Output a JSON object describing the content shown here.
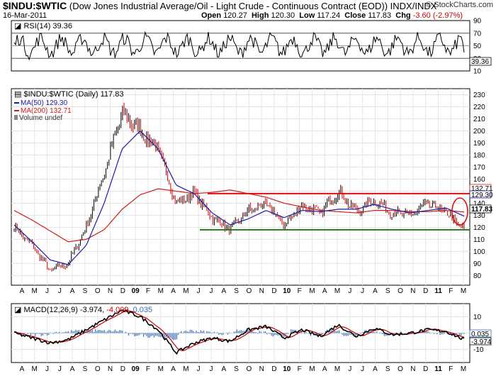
{
  "header": {
    "symbol": "$INDU:$WTIC",
    "description": "(Dow Jones Industrial Average/Oil - Light Crude - Continuous Contract (EOD))",
    "exchange": "INDX/INDX",
    "date": "16-Mar-2011",
    "brand": "© StockCharts.com",
    "open_label": "Open",
    "open": "120.27",
    "high_label": "High",
    "high": "120.30",
    "low_label": "Low",
    "low": "117.24",
    "close_label": "Close",
    "close": "117.83",
    "chg_label": "Chg",
    "chg": "-3.60 (-2.97%)"
  },
  "rsi_panel": {
    "label": "RSI(14) 39.36",
    "current": 39.36,
    "current_label": "39.36",
    "ticks": [
      "90",
      "70",
      "50",
      "30",
      "10"
    ]
  },
  "price_panel": {
    "legend_main": "$INDU:$WTIC (Daily) 117.83",
    "legend_ma50": "MA(50) 129.30",
    "legend_ma200": "MA(200) 132.71",
    "legend_volume": "Volume undef",
    "ticks": [
      "230",
      "220",
      "210",
      "200",
      "190",
      "180",
      "170",
      "160",
      "150",
      "140",
      "130",
      "120",
      "110",
      "100",
      "90",
      "80"
    ],
    "ma200_label": "132.71",
    "ma50_label": "129.30",
    "close_label": "117.83",
    "resistance": 148,
    "support": 118
  },
  "macd_panel": {
    "label_prefix": "MACD(12,26,9) ",
    "macd": "-3.974",
    "signal": "-4.009",
    "hist": "0.035",
    "ticks": [
      "10",
      "0",
      "-10"
    ],
    "hist_label": "0.035",
    "macd_label": "-3.974"
  },
  "x_axis": [
    "A",
    "M",
    "J",
    "J",
    "A",
    "S",
    "O",
    "N",
    "D",
    "09",
    "F",
    "M",
    "A",
    "M",
    "J",
    "J",
    "A",
    "S",
    "O",
    "N",
    "D",
    "10",
    "F",
    "M",
    "A",
    "M",
    "J",
    "J",
    "A",
    "S",
    "O",
    "N",
    "D",
    "11",
    "F",
    "M"
  ],
  "colors": {
    "ma50": "#1a1aa6",
    "ma200": "#d21a1a",
    "down": "#cc0000",
    "up": "#000000",
    "resistance": "#e01010",
    "support": "#2a7a1a",
    "hist": "#3a6fb8",
    "signal": "#cc0000"
  },
  "chart_data": [
    {
      "type": "line",
      "title": "RSI(14)",
      "ylim": [
        10,
        90
      ],
      "current": 39.36,
      "reference_lines": [
        70,
        50,
        30
      ]
    },
    {
      "type": "line",
      "title": "$INDU:$WTIC (Daily)",
      "x": [
        "Apr-08",
        "Jun-08",
        "Jul-08",
        "Aug-08",
        "Oct-08",
        "Nov-08",
        "Dec-08",
        "Jan-09",
        "Feb-09",
        "Mar-09",
        "Apr-09",
        "Jun-09",
        "Jul-09",
        "Aug-09",
        "Oct-09",
        "Dec-09",
        "Jan-10",
        "Apr-10",
        "May-10",
        "Jul-10",
        "Sep-10",
        "Oct-10",
        "Dec-10",
        "Jan-11",
        "Feb-11",
        "Mar-11"
      ],
      "series": [
        {
          "name": "$INDU:$WTIC",
          "values": [
            120,
            105,
            84,
            90,
            120,
            165,
            215,
            200,
            185,
            140,
            148,
            128,
            118,
            134,
            139,
            122,
            138,
            132,
            150,
            133,
            143,
            132,
            130,
            140,
            132,
            117.83
          ]
        },
        {
          "name": "MA(50)",
          "values": [
            122,
            108,
            93,
            89,
            105,
            140,
            185,
            200,
            185,
            155,
            148,
            132,
            122,
            127,
            134,
            128,
            134,
            133,
            135,
            135,
            139,
            135,
            132,
            134,
            136,
            129.3
          ]
        },
        {
          "name": "MA(200)",
          "values": [
            134,
            126,
            117,
            108,
            110,
            118,
            135,
            147,
            152,
            150,
            148,
            149,
            151,
            148,
            145,
            140,
            137,
            134,
            133,
            132,
            134,
            134,
            133,
            133,
            134,
            132.71
          ]
        }
      ],
      "resistance": 148,
      "support": 118,
      "ylim": [
        72,
        235
      ]
    },
    {
      "type": "line",
      "title": "MACD(12,26,9)",
      "macd": -3.974,
      "signal": -4.009,
      "histogram": 0.035,
      "ylim": [
        -18,
        18
      ]
    }
  ]
}
